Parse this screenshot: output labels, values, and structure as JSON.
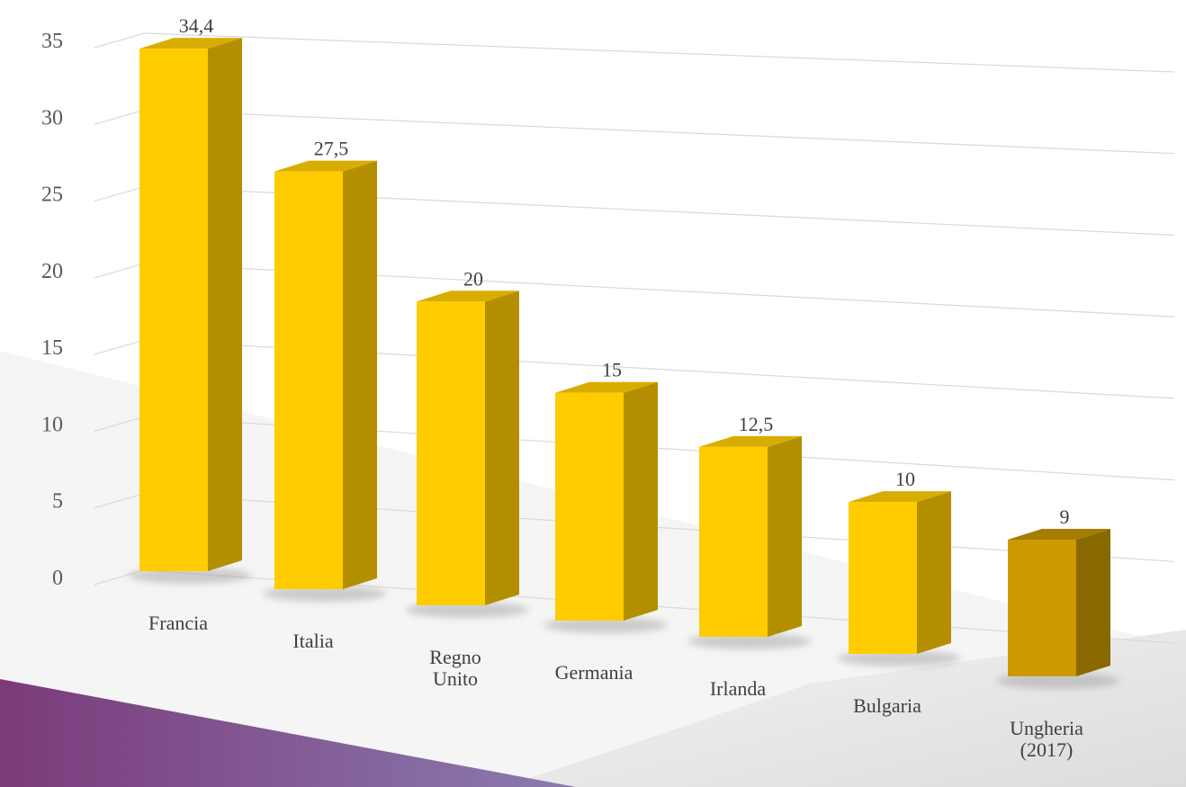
{
  "chart_data": {
    "type": "bar",
    "title": "",
    "xlabel": "",
    "ylabel": "",
    "categories": [
      "Francia",
      "Italia",
      "Regno Unito",
      "Germania",
      "Irlanda",
      "Bulgaria",
      "Ungheria (2017)"
    ],
    "category_lines": [
      [
        "Francia"
      ],
      [
        "Italia"
      ],
      [
        "Regno",
        "Unito"
      ],
      [
        "Germania"
      ],
      [
        "Irlanda"
      ],
      [
        "Bulgaria"
      ],
      [
        "Ungheria",
        "(2017)"
      ]
    ],
    "values": [
      34.4,
      27.5,
      20,
      15,
      12.5,
      10,
      9
    ],
    "data_labels": [
      "34,4",
      "27,5",
      "20",
      "15",
      "12,5",
      "10",
      "9"
    ],
    "ylim": [
      0,
      35
    ],
    "yticks": [
      "0",
      "5",
      "10",
      "15",
      "20",
      "25",
      "30",
      "35"
    ],
    "grid": true,
    "style": "3d-column",
    "colors": {
      "bar_front": "#FFCC00",
      "bar_side": "#B38F00",
      "bar_top": "#D9AD00",
      "highlight_front": "#CC9900",
      "highlight_side": "#8A6800",
      "highlight_top": "#A67C00",
      "gridline": "#D9D9D9",
      "purple": "#7B3A7A",
      "lavender": "#8A7CB0"
    },
    "highlight_index": 6
  }
}
